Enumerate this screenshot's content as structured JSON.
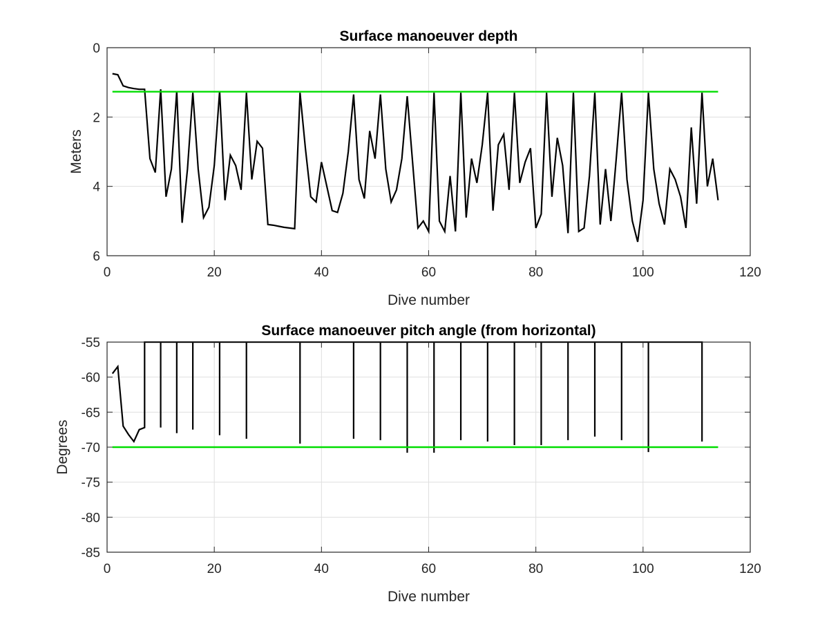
{
  "chart_data": [
    {
      "type": "line",
      "title": "Surface manoeuver depth",
      "xlabel": "Dive number",
      "ylabel": "Meters",
      "xlim": [
        0,
        120
      ],
      "ylim": [
        0,
        6
      ],
      "y_reversed": true,
      "grid": true,
      "xticks": [
        0,
        20,
        40,
        60,
        80,
        100,
        120
      ],
      "yticks": [
        0,
        2,
        4,
        6
      ],
      "series": [
        {
          "color": "#000000",
          "x": [
            1,
            2,
            3,
            4,
            5,
            6,
            7,
            8,
            9,
            10,
            11,
            12,
            13,
            14,
            15,
            16,
            17,
            18,
            19,
            20,
            21,
            22,
            23,
            24,
            25,
            26,
            27,
            28,
            29,
            30,
            31,
            32,
            33,
            34,
            35,
            36,
            37,
            38,
            39,
            40,
            41,
            42,
            43,
            44,
            45,
            46,
            47,
            48,
            49,
            50,
            51,
            52,
            53,
            54,
            55,
            56,
            57,
            58,
            59,
            60,
            61,
            62,
            63,
            64,
            65,
            66,
            67,
            68,
            69,
            70,
            71,
            72,
            73,
            74,
            75,
            76,
            77,
            78,
            79,
            80,
            81,
            82,
            83,
            84,
            85,
            86,
            87,
            88,
            89,
            90,
            91,
            92,
            93,
            94,
            95,
            96,
            97,
            98,
            99,
            100,
            101,
            102,
            103,
            104,
            105,
            106,
            107,
            108,
            109,
            110,
            111,
            112,
            113,
            114
          ],
          "y": [
            0.75,
            0.78,
            1.1,
            1.15,
            1.18,
            1.2,
            1.2,
            3.2,
            3.6,
            1.2,
            4.3,
            3.5,
            1.25,
            5.05,
            3.5,
            1.3,
            3.5,
            4.9,
            4.6,
            3.4,
            1.25,
            4.4,
            3.1,
            3.4,
            4.1,
            1.3,
            3.8,
            2.7,
            2.9,
            5.1,
            5.12,
            5.15,
            5.18,
            5.2,
            5.22,
            1.3,
            2.9,
            4.3,
            4.45,
            3.3,
            4.0,
            4.7,
            4.75,
            4.2,
            3.0,
            1.35,
            3.8,
            4.35,
            2.4,
            3.2,
            1.35,
            3.5,
            4.45,
            4.1,
            3.2,
            1.4,
            3.3,
            5.2,
            5.0,
            5.3,
            1.3,
            5.0,
            5.3,
            3.7,
            5.3,
            1.3,
            4.9,
            3.2,
            3.9,
            2.8,
            1.3,
            4.7,
            2.8,
            2.5,
            4.1,
            1.3,
            3.9,
            3.3,
            2.9,
            5.2,
            4.8,
            1.3,
            4.3,
            2.6,
            3.4,
            5.35,
            1.3,
            5.3,
            5.2,
            3.7,
            1.3,
            5.1,
            3.5,
            5.0,
            3.2,
            1.3,
            3.8,
            5.0,
            5.6,
            4.4,
            1.3,
            3.5,
            4.5,
            5.1,
            3.5,
            3.8,
            4.3,
            5.2,
            2.3,
            4.5,
            1.3,
            4.0,
            3.2,
            4.4
          ]
        },
        {
          "color": "#00dd00",
          "x": [
            1,
            114
          ],
          "y": [
            1.27,
            1.27
          ]
        }
      ]
    },
    {
      "type": "line",
      "title": "Surface manoeuver pitch angle (from horizontal)",
      "xlabel": "Dive number",
      "ylabel": "Degrees",
      "xlim": [
        0,
        120
      ],
      "ylim": [
        -85,
        -55
      ],
      "grid": true,
      "xticks": [
        0,
        20,
        40,
        60,
        80,
        100,
        120
      ],
      "yticks": [
        -55,
        -60,
        -65,
        -70,
        -75,
        -80,
        -85
      ],
      "series": [
        {
          "color": "#000000",
          "x": [
            1,
            2,
            3,
            4,
            5,
            6,
            7,
            7,
            10,
            10,
            10,
            13,
            13,
            13,
            16,
            16,
            16,
            21,
            21,
            21,
            26,
            26,
            26,
            36,
            36,
            36,
            46,
            46,
            46,
            51,
            51,
            51,
            56,
            56,
            56,
            61,
            61,
            61,
            66,
            66,
            66,
            71,
            71,
            71,
            76,
            76,
            76,
            81,
            81,
            81,
            86,
            86,
            86,
            91,
            91,
            91,
            96,
            96,
            96,
            101,
            101,
            101,
            111,
            111,
            111
          ],
          "y": [
            -59.5,
            -58.5,
            -67,
            -68.2,
            -69.2,
            -67.5,
            -67.2,
            -55,
            -55,
            -67.2,
            -55,
            -55,
            -68,
            -55,
            -55,
            -67.5,
            -55,
            -55,
            -68.3,
            -55,
            -55,
            -68.8,
            -55,
            -55,
            -69.5,
            -55,
            -55,
            -68.8,
            -55,
            -55,
            -69,
            -55,
            -55,
            -70.8,
            -55,
            -55,
            -70.8,
            -55,
            -55,
            -69,
            -55,
            -55,
            -69.2,
            -55,
            -55,
            -69.7,
            -55,
            -55,
            -69.7,
            -55,
            -55,
            -69,
            -55,
            -55,
            -68.5,
            -55,
            -55,
            -69,
            -55,
            -55,
            -70.7,
            -55,
            -55,
            -69.2,
            -55
          ]
        },
        {
          "color": "#00dd00",
          "x": [
            1,
            114
          ],
          "y": [
            -70,
            -70
          ]
        }
      ]
    }
  ]
}
